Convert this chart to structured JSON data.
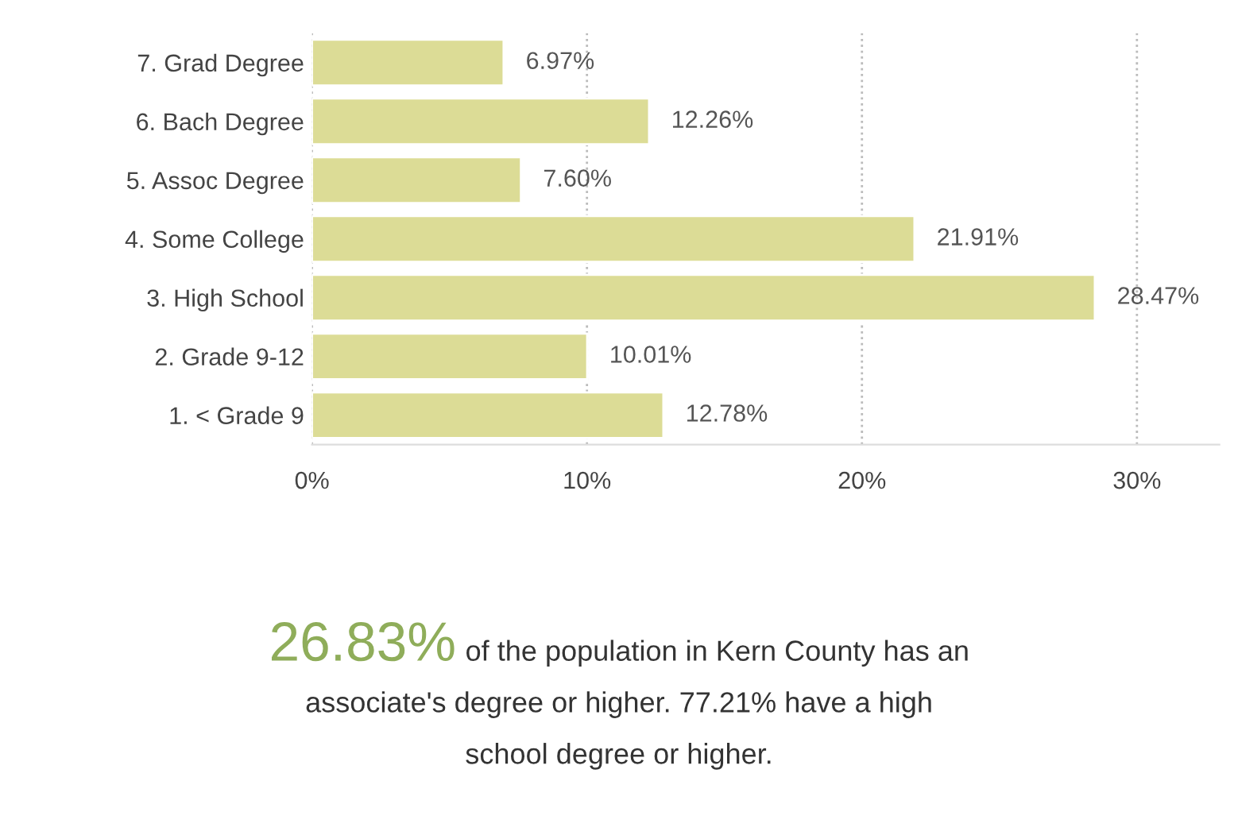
{
  "chart_data": {
    "type": "bar",
    "orientation": "horizontal",
    "categories": [
      "7. Grad Degree",
      "6. Bach Degree",
      "5. Assoc Degree",
      "4. Some College",
      "3. High School",
      "2. Grade 9-12",
      "1. < Grade 9"
    ],
    "values": [
      6.97,
      12.26,
      7.6,
      21.91,
      28.47,
      10.01,
      12.78
    ],
    "value_labels": [
      "6.97%",
      "12.26%",
      "7.60%",
      "21.91%",
      "28.47%",
      "10.01%",
      "12.78%"
    ],
    "color": "#dcdc96",
    "xlim": [
      0,
      33
    ],
    "xticks": [
      {
        "value": 0,
        "label": "0%"
      },
      {
        "value": 10,
        "label": "10%"
      },
      {
        "value": 20,
        "label": "20%"
      },
      {
        "value": 30,
        "label": "30%"
      }
    ],
    "grid": "x",
    "annotations": [
      "26.83%",
      "of the population in Kern County has an",
      "associate's degree or higher. 77.21% have a high",
      "school degree or higher."
    ]
  }
}
